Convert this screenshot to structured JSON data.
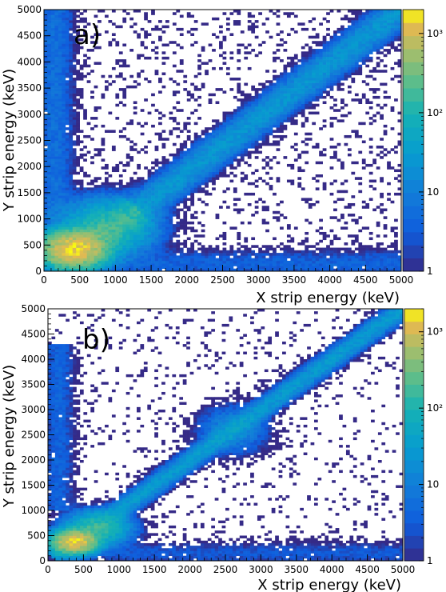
{
  "chart_data": [
    {
      "type": "heatmap",
      "panel_label": "a)",
      "xlabel": "X strip energy (keV)",
      "ylabel": "Y strip energy (keV)",
      "xlim": [
        0,
        5000
      ],
      "ylim": [
        0,
        5000
      ],
      "x_ticks": [
        "0",
        "500",
        "1000",
        "1500",
        "2000",
        "2500",
        "3000",
        "3500",
        "4000",
        "4500",
        "5000"
      ],
      "y_ticks": [
        "0",
        "500",
        "1000",
        "1500",
        "2000",
        "2500",
        "3000",
        "3500",
        "4000",
        "4500",
        "5000"
      ],
      "colorbar": {
        "scale": "log",
        "range": [
          1,
          2000
        ],
        "ticks": [
          {
            "label": "1",
            "value": 1
          },
          {
            "label": "10",
            "value": 10
          },
          {
            "label": "10²",
            "value": 100
          },
          {
            "label": "10³",
            "value": 1000
          }
        ]
      },
      "features": [
        {
          "shape": "blob",
          "cx": 430,
          "cy": 430,
          "sx": 220,
          "sy": 170,
          "peak": 1500
        },
        {
          "shape": "blob",
          "cx": 900,
          "cy": 850,
          "sx": 320,
          "sy": 260,
          "peak": 120
        },
        {
          "shape": "band",
          "from": [
            1200,
            1050
          ],
          "to": [
            5000,
            5000
          ],
          "width": 140,
          "peak": 25
        },
        {
          "shape": "band",
          "from": [
            150,
            150
          ],
          "to": [
            1300,
            1150
          ],
          "width": 140,
          "peak": 80
        },
        {
          "shape": "vertical-strip",
          "x": 150,
          "y_range": [
            1000,
            5000
          ],
          "width": 150,
          "peak": 6
        },
        {
          "shape": "horizontal-strip",
          "y": 150,
          "x_range": [
            1000,
            5000
          ],
          "width": 150,
          "peak": 4
        },
        {
          "shape": "uniform-background",
          "density": 0.15
        }
      ]
    },
    {
      "type": "heatmap",
      "panel_label": "b)",
      "xlabel": "X strip energy (keV)",
      "ylabel": "Y strip energy (keV)",
      "xlim": [
        0,
        5000
      ],
      "ylim": [
        0,
        5000
      ],
      "x_ticks": [
        "0",
        "500",
        "1000",
        "1500",
        "2000",
        "2500",
        "3000",
        "3500",
        "4000",
        "4500",
        "5000"
      ],
      "y_ticks": [
        "0",
        "500",
        "1000",
        "1500",
        "2000",
        "2500",
        "3000",
        "3500",
        "4000",
        "4500",
        "5000"
      ],
      "colorbar": {
        "scale": "log",
        "range": [
          1,
          2000
        ],
        "ticks": [
          {
            "label": "1",
            "value": 1
          },
          {
            "label": "10",
            "value": 10
          },
          {
            "label": "10²",
            "value": 100
          },
          {
            "label": "10³",
            "value": 1000
          }
        ]
      },
      "features": [
        {
          "shape": "band",
          "from": [
            150,
            150
          ],
          "to": [
            5000,
            5000
          ],
          "width": 90,
          "peak": 30
        },
        {
          "shape": "blob",
          "cx": 380,
          "cy": 380,
          "sx": 150,
          "sy": 110,
          "peak": 1500
        },
        {
          "shape": "blob",
          "cx": 700,
          "cy": 650,
          "sx": 220,
          "sy": 160,
          "peak": 150
        },
        {
          "shape": "blob",
          "cx": 2600,
          "cy": 2600,
          "sx": 250,
          "sy": 250,
          "peak": 15
        },
        {
          "shape": "vertical-strip",
          "x": 150,
          "y_range": [
            1000,
            4300
          ],
          "width": 130,
          "peak": 4
        },
        {
          "shape": "horizontal-strip",
          "y": 150,
          "x_range": [
            800,
            5000
          ],
          "width": 130,
          "peak": 3
        },
        {
          "shape": "uniform-background",
          "density": 0.08
        }
      ]
    }
  ]
}
